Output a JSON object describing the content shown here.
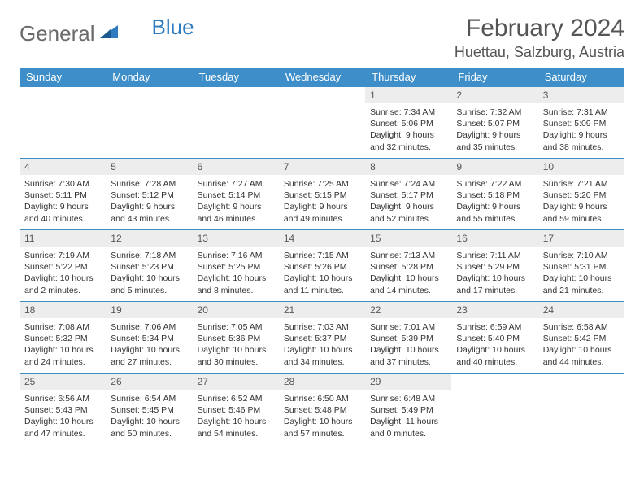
{
  "brand": {
    "text1": "General",
    "text2": "Blue"
  },
  "title": "February 2024",
  "location": "Huettau, Salzburg, Austria",
  "colors": {
    "header_bg": "#3e8fc9",
    "header_text": "#ffffff",
    "daynum_bg": "#ededed",
    "border": "#3e8fc9",
    "brand_gray": "#6b6b6b",
    "brand_blue": "#2e7bbf"
  },
  "weekdays": [
    "Sunday",
    "Monday",
    "Tuesday",
    "Wednesday",
    "Thursday",
    "Friday",
    "Saturday"
  ],
  "weeks": [
    [
      null,
      null,
      null,
      null,
      {
        "num": "1",
        "sunrise": "7:34 AM",
        "sunset": "5:06 PM",
        "daylight": "9 hours and 32 minutes."
      },
      {
        "num": "2",
        "sunrise": "7:32 AM",
        "sunset": "5:07 PM",
        "daylight": "9 hours and 35 minutes."
      },
      {
        "num": "3",
        "sunrise": "7:31 AM",
        "sunset": "5:09 PM",
        "daylight": "9 hours and 38 minutes."
      }
    ],
    [
      {
        "num": "4",
        "sunrise": "7:30 AM",
        "sunset": "5:11 PM",
        "daylight": "9 hours and 40 minutes."
      },
      {
        "num": "5",
        "sunrise": "7:28 AM",
        "sunset": "5:12 PM",
        "daylight": "9 hours and 43 minutes."
      },
      {
        "num": "6",
        "sunrise": "7:27 AM",
        "sunset": "5:14 PM",
        "daylight": "9 hours and 46 minutes."
      },
      {
        "num": "7",
        "sunrise": "7:25 AM",
        "sunset": "5:15 PM",
        "daylight": "9 hours and 49 minutes."
      },
      {
        "num": "8",
        "sunrise": "7:24 AM",
        "sunset": "5:17 PM",
        "daylight": "9 hours and 52 minutes."
      },
      {
        "num": "9",
        "sunrise": "7:22 AM",
        "sunset": "5:18 PM",
        "daylight": "9 hours and 55 minutes."
      },
      {
        "num": "10",
        "sunrise": "7:21 AM",
        "sunset": "5:20 PM",
        "daylight": "9 hours and 59 minutes."
      }
    ],
    [
      {
        "num": "11",
        "sunrise": "7:19 AM",
        "sunset": "5:22 PM",
        "daylight": "10 hours and 2 minutes."
      },
      {
        "num": "12",
        "sunrise": "7:18 AM",
        "sunset": "5:23 PM",
        "daylight": "10 hours and 5 minutes."
      },
      {
        "num": "13",
        "sunrise": "7:16 AM",
        "sunset": "5:25 PM",
        "daylight": "10 hours and 8 minutes."
      },
      {
        "num": "14",
        "sunrise": "7:15 AM",
        "sunset": "5:26 PM",
        "daylight": "10 hours and 11 minutes."
      },
      {
        "num": "15",
        "sunrise": "7:13 AM",
        "sunset": "5:28 PM",
        "daylight": "10 hours and 14 minutes."
      },
      {
        "num": "16",
        "sunrise": "7:11 AM",
        "sunset": "5:29 PM",
        "daylight": "10 hours and 17 minutes."
      },
      {
        "num": "17",
        "sunrise": "7:10 AM",
        "sunset": "5:31 PM",
        "daylight": "10 hours and 21 minutes."
      }
    ],
    [
      {
        "num": "18",
        "sunrise": "7:08 AM",
        "sunset": "5:32 PM",
        "daylight": "10 hours and 24 minutes."
      },
      {
        "num": "19",
        "sunrise": "7:06 AM",
        "sunset": "5:34 PM",
        "daylight": "10 hours and 27 minutes."
      },
      {
        "num": "20",
        "sunrise": "7:05 AM",
        "sunset": "5:36 PM",
        "daylight": "10 hours and 30 minutes."
      },
      {
        "num": "21",
        "sunrise": "7:03 AM",
        "sunset": "5:37 PM",
        "daylight": "10 hours and 34 minutes."
      },
      {
        "num": "22",
        "sunrise": "7:01 AM",
        "sunset": "5:39 PM",
        "daylight": "10 hours and 37 minutes."
      },
      {
        "num": "23",
        "sunrise": "6:59 AM",
        "sunset": "5:40 PM",
        "daylight": "10 hours and 40 minutes."
      },
      {
        "num": "24",
        "sunrise": "6:58 AM",
        "sunset": "5:42 PM",
        "daylight": "10 hours and 44 minutes."
      }
    ],
    [
      {
        "num": "25",
        "sunrise": "6:56 AM",
        "sunset": "5:43 PM",
        "daylight": "10 hours and 47 minutes."
      },
      {
        "num": "26",
        "sunrise": "6:54 AM",
        "sunset": "5:45 PM",
        "daylight": "10 hours and 50 minutes."
      },
      {
        "num": "27",
        "sunrise": "6:52 AM",
        "sunset": "5:46 PM",
        "daylight": "10 hours and 54 minutes."
      },
      {
        "num": "28",
        "sunrise": "6:50 AM",
        "sunset": "5:48 PM",
        "daylight": "10 hours and 57 minutes."
      },
      {
        "num": "29",
        "sunrise": "6:48 AM",
        "sunset": "5:49 PM",
        "daylight": "11 hours and 0 minutes."
      },
      null,
      null
    ]
  ],
  "labels": {
    "sunrise": "Sunrise:",
    "sunset": "Sunset:",
    "daylight": "Daylight:"
  }
}
